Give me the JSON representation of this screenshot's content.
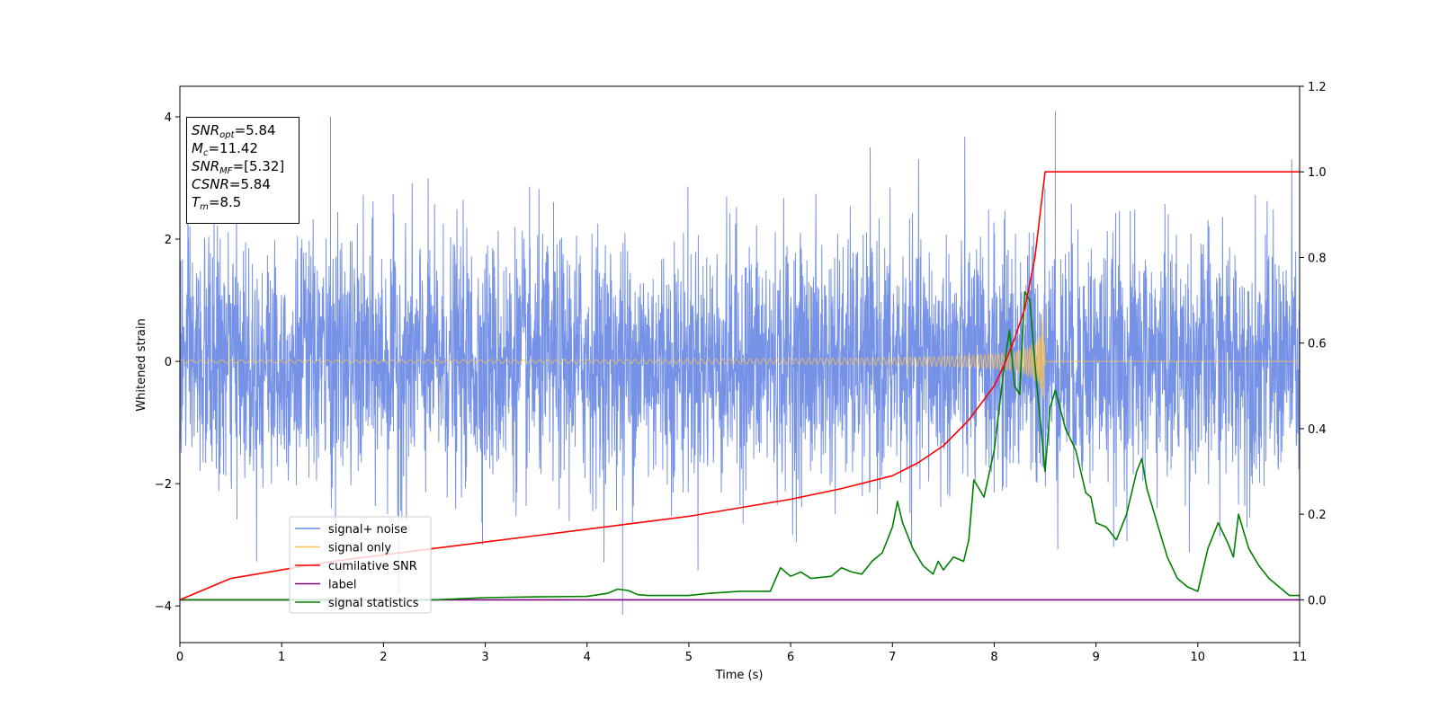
{
  "chart_data": {
    "type": "line",
    "title": "",
    "xlabel": "Time (s)",
    "ylabel": "Whitened strain",
    "xlim": [
      0,
      11
    ],
    "ylim": [
      -4.6,
      4.5
    ],
    "y2lim": [
      -0.1,
      1.2
    ],
    "xticks": [
      "0",
      "1",
      "2",
      "3",
      "4",
      "5",
      "6",
      "7",
      "8",
      "9",
      "10",
      "11"
    ],
    "yticks": [
      "4",
      "2",
      "0",
      "−2",
      "−4"
    ],
    "y2ticks": [
      "1.2",
      "1.0",
      "0.8",
      "0.6",
      "0.4",
      "0.2",
      "0.0"
    ],
    "legend_position": "lower-left",
    "colors": {
      "signal_noise": "#6f8ce6",
      "signal_only": "#ffc34d",
      "cumulative_snr": "#ff0000",
      "label": "#800080",
      "signal_statistics": "#008000"
    },
    "series": [
      {
        "name": "signal+ noise",
        "axis": "left",
        "description_of_values": "whitened noise plus chirp, std approx 1.0, t from 0 to 11 s",
        "noise_std": 1.0,
        "peaks": [
          [
            1.48,
            4.0
          ],
          [
            8.6,
            4.1
          ],
          [
            4.35,
            -4.15
          ],
          [
            2.15,
            -3.8
          ]
        ]
      },
      {
        "name": "signal only",
        "axis": "left",
        "description_of_values": "chirp with growing amplitude, peak approx 1.0 at 8.5 s, zero afterwards",
        "chirp_end_time": 8.5,
        "max_amplitude": 1.0
      },
      {
        "name": "cumilative SNR",
        "axis": "right",
        "x": [
          0,
          0.5,
          1,
          1.5,
          2,
          2.5,
          3,
          3.5,
          4,
          4.5,
          5,
          5.5,
          6,
          6.5,
          7,
          7.25,
          7.5,
          7.75,
          8,
          8.1,
          8.2,
          8.3,
          8.4,
          8.45,
          8.5,
          11
        ],
        "values": [
          0.0,
          0.05,
          0.07,
          0.09,
          0.105,
          0.12,
          0.135,
          0.15,
          0.165,
          0.18,
          0.195,
          0.215,
          0.235,
          0.26,
          0.29,
          0.32,
          0.36,
          0.42,
          0.5,
          0.55,
          0.61,
          0.68,
          0.8,
          0.9,
          1.0,
          1.0
        ]
      },
      {
        "name": "label",
        "axis": "right",
        "x": [
          0,
          11
        ],
        "values": [
          0.0,
          0.0
        ]
      },
      {
        "name": "signal statistics",
        "axis": "right",
        "x": [
          0,
          0.5,
          1,
          1.5,
          2,
          2.5,
          3,
          3.5,
          4,
          4.2,
          4.3,
          4.4,
          4.5,
          4.6,
          4.7,
          5,
          5.2,
          5.5,
          5.7,
          5.8,
          5.9,
          6.0,
          6.1,
          6.2,
          6.4,
          6.5,
          6.6,
          6.7,
          6.8,
          6.9,
          7.0,
          7.05,
          7.1,
          7.2,
          7.3,
          7.4,
          7.45,
          7.5,
          7.6,
          7.7,
          7.75,
          7.8,
          7.9,
          8.0,
          8.1,
          8.15,
          8.2,
          8.25,
          8.3,
          8.35,
          8.4,
          8.5,
          8.55,
          8.6,
          8.7,
          8.8,
          8.85,
          8.9,
          8.95,
          9.0,
          9.1,
          9.2,
          9.3,
          9.4,
          9.45,
          9.5,
          9.6,
          9.7,
          9.8,
          9.9,
          10.0,
          10.1,
          10.2,
          10.3,
          10.35,
          10.4,
          10.5,
          10.6,
          10.7,
          10.8,
          10.9,
          11
        ],
        "values": [
          0.0,
          0.0,
          0.0,
          0.0,
          0.0,
          0.0,
          0.005,
          0.007,
          0.008,
          0.015,
          0.025,
          0.022,
          0.012,
          0.01,
          0.01,
          0.01,
          0.015,
          0.02,
          0.02,
          0.02,
          0.075,
          0.055,
          0.065,
          0.05,
          0.055,
          0.075,
          0.065,
          0.06,
          0.09,
          0.11,
          0.17,
          0.23,
          0.18,
          0.12,
          0.08,
          0.06,
          0.09,
          0.07,
          0.1,
          0.09,
          0.14,
          0.28,
          0.24,
          0.35,
          0.55,
          0.63,
          0.5,
          0.48,
          0.72,
          0.7,
          0.55,
          0.3,
          0.45,
          0.49,
          0.4,
          0.35,
          0.3,
          0.25,
          0.24,
          0.18,
          0.17,
          0.14,
          0.2,
          0.3,
          0.33,
          0.26,
          0.18,
          0.1,
          0.05,
          0.03,
          0.02,
          0.12,
          0.18,
          0.13,
          0.1,
          0.2,
          0.12,
          0.08,
          0.05,
          0.03,
          0.01,
          0.01
        ]
      }
    ]
  },
  "info_box": {
    "snr_opt_base": "SNR",
    "snr_opt_sub": "opt",
    "snr_opt_value": "=5.84",
    "mc_base": "M",
    "mc_sub": "c",
    "mc_value": "=11.42",
    "snr_mf_base": "SNR",
    "snr_mf_sub": "MF",
    "snr_mf_value": "=[5.32]",
    "csnr_base": "CSNR",
    "csnr_value": "=5.84",
    "tm_base": "T",
    "tm_sub": "m",
    "tm_value": "=8.5"
  },
  "legend": {
    "items": [
      "signal+ noise",
      "signal only",
      "cumilative SNR",
      "label",
      "signal statistics"
    ]
  }
}
